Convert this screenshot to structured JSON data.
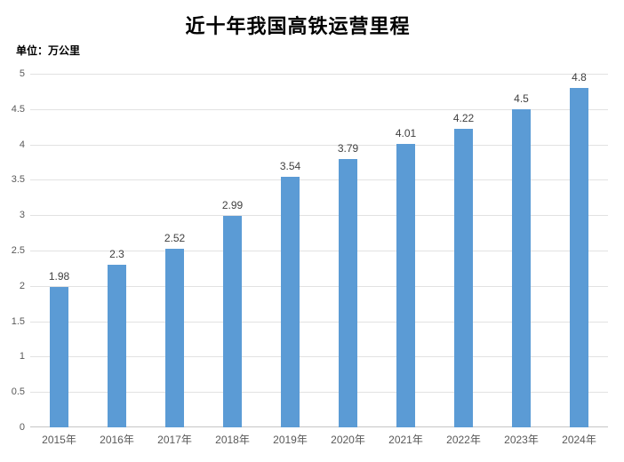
{
  "chart_data": {
    "type": "bar",
    "title": "近十年我国高铁运营里程",
    "unit_label": "单位：万公里",
    "categories": [
      "2015年",
      "2016年",
      "2017年",
      "2018年",
      "2019年",
      "2020年",
      "2021年",
      "2022年",
      "2023年",
      "2024年"
    ],
    "values": [
      1.98,
      2.3,
      2.52,
      2.99,
      3.54,
      3.79,
      4.01,
      4.22,
      4.5,
      4.8
    ],
    "value_labels": [
      "1.98",
      "2.3",
      "2.52",
      "2.99",
      "3.54",
      "3.79",
      "4.01",
      "4.22",
      "4.5",
      "4.8"
    ],
    "xlabel": "",
    "ylabel": "",
    "ylim": [
      0,
      5
    ],
    "ytick_step": 0.5,
    "ytick_labels": [
      "0",
      "0.5",
      "1",
      "1.5",
      "2",
      "2.5",
      "3",
      "3.5",
      "4",
      "4.5",
      "5"
    ],
    "grid": true,
    "legend": "none",
    "colors": {
      "bar": "#5B9BD5",
      "gridline": "#E2E2E2",
      "axis_line": "#C6C6C6",
      "value_label": "#404040",
      "tick_label": "#595959",
      "background": "#FFFFFF"
    }
  }
}
